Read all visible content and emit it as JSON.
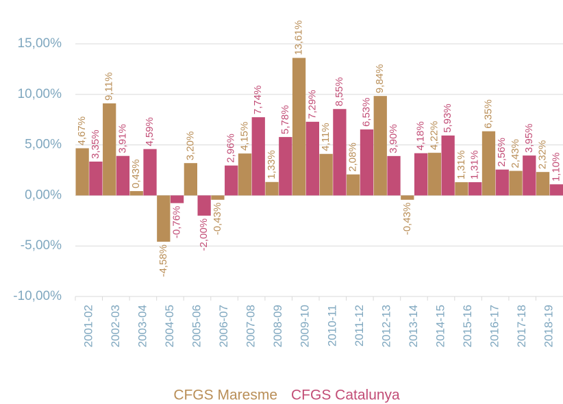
{
  "chart_data": {
    "type": "bar",
    "categories": [
      "2001-02",
      "2002-03",
      "2003-04",
      "2004-05",
      "2005-06",
      "2006-07",
      "2007-08",
      "2008-09",
      "2009-10",
      "2010-11",
      "2011-12",
      "2012-13",
      "2013-14",
      "2014-15",
      "2015-16",
      "2016-17",
      "2017-18",
      "2018-19"
    ],
    "series": [
      {
        "name": "CFGS Maresme",
        "color": "#b98e57",
        "values": [
          4.67,
          9.11,
          0.43,
          -4.58,
          3.2,
          -0.43,
          4.15,
          1.33,
          13.61,
          4.11,
          2.08,
          9.84,
          -0.43,
          4.22,
          1.31,
          6.35,
          2.43,
          2.32
        ],
        "value_labels": [
          "4,67%",
          "9,11%",
          "0,43%",
          "-4,58%",
          "3,20%",
          "-0,43%",
          "4,15%",
          "1,33%",
          "13,61%",
          "4,11%",
          "2,08%",
          "9,84%",
          "-0,43%",
          "4,22%",
          "1,31%",
          "6,35%",
          "2,43%",
          "2,32%"
        ]
      },
      {
        "name": "CFGS Catalunya",
        "color": "#c24d76",
        "values": [
          3.35,
          3.91,
          4.59,
          -0.76,
          -2.0,
          2.96,
          7.74,
          5.78,
          7.29,
          8.55,
          6.53,
          3.9,
          4.18,
          5.93,
          1.31,
          2.56,
          3.95,
          1.1
        ],
        "value_labels": [
          "3,35%",
          "3,91%",
          "4,59%",
          "-0,76%",
          "-2,00%",
          "2,96%",
          "7,74%",
          "5,78%",
          "7,29%",
          "8,55%",
          "6,53%",
          "3,90%",
          "4,18%",
          "5,93%",
          "1,31%",
          "2,56%",
          "3,95%",
          "1,10%"
        ]
      }
    ],
    "ylim": [
      -10,
      19
    ],
    "yticks": [
      {
        "value": -10,
        "label": "-10,00%"
      },
      {
        "value": -5,
        "label": "-5,00%"
      },
      {
        "value": 0,
        "label": "0,00%"
      },
      {
        "value": 5,
        "label": "5,00%"
      },
      {
        "value": 10,
        "label": "10,00%"
      },
      {
        "value": 15,
        "label": "15,00%"
      }
    ],
    "grid": true
  }
}
